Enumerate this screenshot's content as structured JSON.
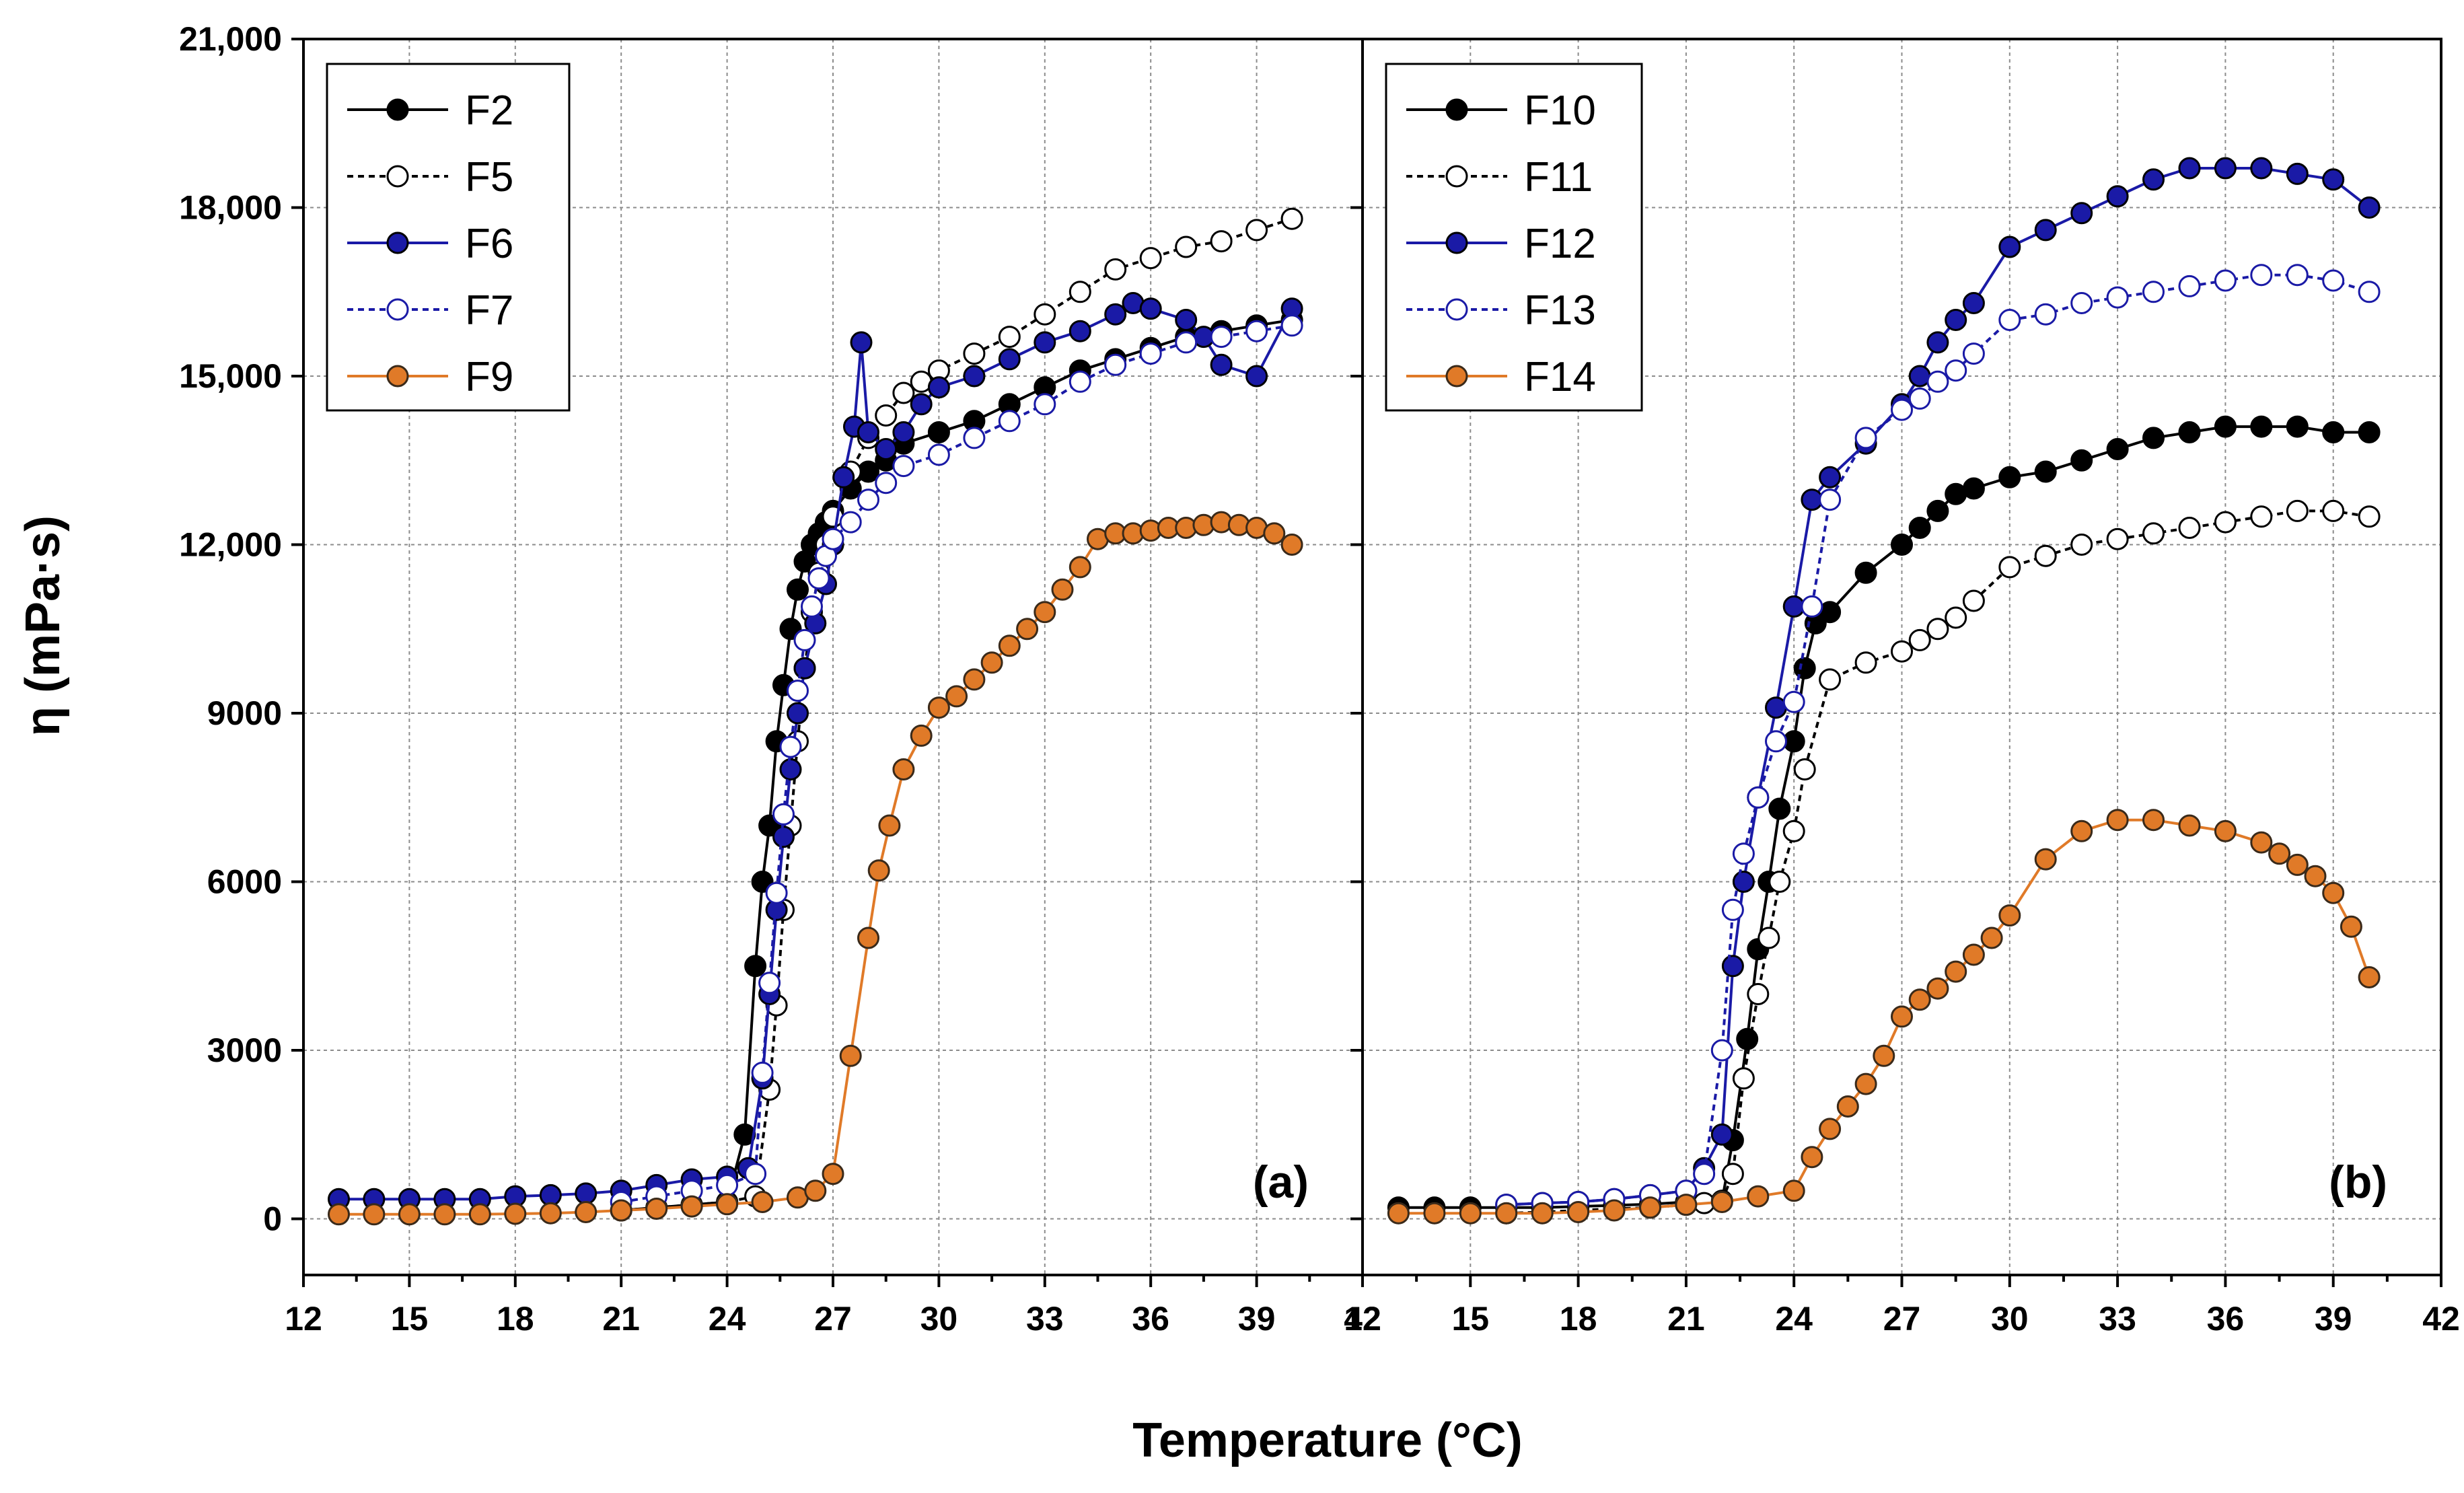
{
  "chart_data": {
    "type": "line",
    "shared": {
      "xlabel": "Temperature (°C)",
      "ylabel": "η (mPa·s)",
      "xlim": [
        12,
        42
      ],
      "ylim": [
        -1000,
        21000
      ],
      "xticks": [
        12,
        15,
        18,
        21,
        24,
        27,
        30,
        33,
        36,
        39,
        42
      ],
      "xtick_labels": [
        "12",
        "15",
        "18",
        "21",
        "24",
        "27",
        "30",
        "33",
        "36",
        "39",
        "42"
      ],
      "yticks": [
        0,
        3000,
        6000,
        9000,
        12000,
        15000,
        18000,
        21000
      ],
      "ytick_labels": [
        "0",
        "3000",
        "6000",
        "9000",
        "12,000",
        "15,000",
        "18,000",
        "21,000"
      ],
      "grid": true
    },
    "panels": [
      {
        "label": "(a)",
        "legend_position": "top-left",
        "series": [
          {
            "name": "F2",
            "color": "#000000",
            "filled": true,
            "dashed": false,
            "x": [
              21,
              22,
              23,
              24,
              24.5,
              24.8,
              25,
              25.2,
              25.4,
              25.6,
              25.8,
              26,
              26.2,
              26.4,
              26.6,
              26.8,
              27,
              27.5,
              28,
              28.5,
              29,
              30,
              31,
              32,
              33,
              34,
              35,
              36,
              37,
              38,
              39,
              40
            ],
            "y": [
              150,
              200,
              250,
              300,
              1500,
              4500,
              6000,
              7000,
              8500,
              9500,
              10500,
              11200,
              11700,
              12000,
              12200,
              12400,
              12600,
              13000,
              13300,
              13500,
              13800,
              14000,
              14200,
              14500,
              14800,
              15100,
              15300,
              15500,
              15700,
              15800,
              15900,
              16000
            ]
          },
          {
            "name": "F5",
            "color": "#000000",
            "filled": false,
            "dashed": true,
            "x": [
              21,
              22,
              23,
              24,
              24.8,
              25.2,
              25.4,
              25.6,
              25.8,
              26,
              26.2,
              26.4,
              26.6,
              26.8,
              27,
              27.5,
              28,
              28.5,
              29,
              29.5,
              30,
              31,
              32,
              33,
              34,
              35,
              36,
              37,
              38,
              39,
              40
            ],
            "y": [
              150,
              200,
              250,
              300,
              400,
              2300,
              3800,
              5500,
              7000,
              8500,
              9800,
              10800,
              11500,
              12000,
              12500,
              13300,
              13900,
              14300,
              14700,
              14900,
              15100,
              15400,
              15700,
              16100,
              16500,
              16900,
              17100,
              17300,
              17400,
              17600,
              17800
            ]
          },
          {
            "name": "F6",
            "color": "#1a1aa6",
            "filled": true,
            "dashed": false,
            "x": [
              13,
              14,
              15,
              16,
              17,
              18,
              19,
              20,
              21,
              22,
              23,
              24,
              24.6,
              25,
              25.2,
              25.4,
              25.6,
              25.8,
              26,
              26.2,
              26.5,
              26.8,
              27,
              27.3,
              27.6,
              27.8,
              28,
              28.5,
              29,
              29.5,
              30,
              31,
              32,
              33,
              34,
              35,
              35.5,
              36,
              37,
              37.5,
              38,
              39,
              40
            ],
            "y": [
              350,
              350,
              350,
              350,
              350,
              400,
              420,
              450,
              500,
              600,
              700,
              750,
              900,
              2500,
              4000,
              5500,
              6800,
              8000,
              9000,
              9800,
              10600,
              11300,
              12000,
              13200,
              14100,
              15600,
              14000,
              13700,
              14000,
              14500,
              14800,
              15000,
              15300,
              15600,
              15800,
              16100,
              16300,
              16200,
              16000,
              15700,
              15200,
              15000,
              16200
            ]
          },
          {
            "name": "F7",
            "color": "#1a1aa6",
            "filled": false,
            "dashed": true,
            "x": [
              21,
              22,
              23,
              24,
              24.8,
              25,
              25.2,
              25.4,
              25.6,
              25.8,
              26,
              26.2,
              26.4,
              26.6,
              26.8,
              27,
              27.5,
              28,
              28.5,
              29,
              30,
              31,
              32,
              33,
              34,
              35,
              36,
              37,
              38,
              39,
              40
            ],
            "y": [
              300,
              400,
              500,
              600,
              800,
              2600,
              4200,
              5800,
              7200,
              8400,
              9400,
              10300,
              10900,
              11400,
              11800,
              12100,
              12400,
              12800,
              13100,
              13400,
              13600,
              13900,
              14200,
              14500,
              14900,
              15200,
              15400,
              15600,
              15700,
              15800,
              15900
            ]
          },
          {
            "name": "F9",
            "color": "#e07a28",
            "filled": true,
            "dashed": false,
            "x": [
              13,
              14,
              15,
              16,
              17,
              18,
              19,
              20,
              21,
              22,
              23,
              24,
              25,
              26,
              26.5,
              27,
              27.5,
              28,
              28.3,
              28.6,
              29,
              29.5,
              30,
              30.5,
              31,
              31.5,
              32,
              32.5,
              33,
              33.5,
              34,
              34.5,
              35,
              35.5,
              36,
              36.5,
              37,
              37.5,
              38,
              38.5,
              39,
              39.5,
              40
            ],
            "y": [
              80,
              80,
              80,
              80,
              80,
              90,
              100,
              120,
              150,
              180,
              220,
              260,
              300,
              380,
              500,
              800,
              2900,
              5000,
              6200,
              7000,
              8000,
              8600,
              9100,
              9300,
              9600,
              9900,
              10200,
              10500,
              10800,
              11200,
              11600,
              12100,
              12200,
              12200,
              12250,
              12300,
              12300,
              12350,
              12400,
              12350,
              12300,
              12200,
              12000
            ]
          }
        ]
      },
      {
        "label": "(b)",
        "legend_position": "top-left",
        "series": [
          {
            "name": "F10",
            "color": "#000000",
            "filled": true,
            "dashed": false,
            "x": [
              13,
              14,
              15,
              16,
              17,
              18,
              19,
              20,
              21,
              22,
              22.3,
              22.7,
              23,
              23.3,
              23.6,
              24,
              24.3,
              24.6,
              25,
              26,
              27,
              27.5,
              28,
              28.5,
              29,
              30,
              31,
              32,
              33,
              34,
              35,
              36,
              37,
              38,
              39,
              40
            ],
            "y": [
              200,
              200,
              200,
              200,
              200,
              220,
              240,
              260,
              300,
              320,
              1400,
              3200,
              4800,
              6000,
              7300,
              8500,
              9800,
              10600,
              10800,
              11500,
              12000,
              12300,
              12600,
              12900,
              13000,
              13200,
              13300,
              13500,
              13700,
              13900,
              14000,
              14100,
              14100,
              14100,
              14000,
              14000
            ]
          },
          {
            "name": "F11",
            "color": "#000000",
            "filled": false,
            "dashed": true,
            "x": [
              16,
              17,
              18,
              19,
              20,
              21,
              21.5,
              22,
              22.3,
              22.6,
              23,
              23.3,
              23.6,
              24,
              24.3,
              25,
              26,
              27,
              27.5,
              28,
              28.5,
              29,
              30,
              31,
              32,
              33,
              34,
              35,
              36,
              37,
              38,
              39,
              40
            ],
            "y": [
              100,
              120,
              150,
              180,
              200,
              250,
              280,
              320,
              800,
              2500,
              4000,
              5000,
              6000,
              6900,
              8000,
              9600,
              9900,
              10100,
              10300,
              10500,
              10700,
              11000,
              11600,
              11800,
              12000,
              12100,
              12200,
              12300,
              12400,
              12500,
              12600,
              12600,
              12500
            ]
          },
          {
            "name": "F12",
            "color": "#1a1aa6",
            "filled": true,
            "dashed": false,
            "x": [
              16,
              17,
              18,
              19,
              20,
              21,
              21.5,
              22,
              22.3,
              22.6,
              23,
              23.5,
              24,
              24.5,
              25,
              26,
              27,
              27.5,
              28,
              28.5,
              29,
              30,
              31,
              32,
              33,
              34,
              35,
              36,
              37,
              38,
              39,
              40
            ],
            "y": [
              250,
              280,
              300,
              350,
              420,
              500,
              900,
              1500,
              4500,
              6000,
              7500,
              9100,
              10900,
              12800,
              13200,
              13800,
              14500,
              15000,
              15600,
              16000,
              16300,
              17300,
              17600,
              17900,
              18200,
              18500,
              18700,
              18700,
              18700,
              18600,
              18500,
              18000
            ]
          },
          {
            "name": "F13",
            "color": "#1a1aa6",
            "filled": false,
            "dashed": true,
            "x": [
              16,
              17,
              18,
              19,
              20,
              21,
              21.5,
              22,
              22.3,
              22.6,
              23,
              23.5,
              24,
              24.5,
              25,
              26,
              27,
              27.5,
              28,
              28.5,
              29,
              30,
              31,
              32,
              33,
              34,
              35,
              36,
              37,
              38,
              39,
              40
            ],
            "y": [
              250,
              280,
              300,
              350,
              420,
              500,
              800,
              3000,
              5500,
              6500,
              7500,
              8500,
              9200,
              10900,
              12800,
              13900,
              14400,
              14600,
              14900,
              15100,
              15400,
              16000,
              16100,
              16300,
              16400,
              16500,
              16600,
              16700,
              16800,
              16800,
              16700,
              16500
            ]
          },
          {
            "name": "F14",
            "color": "#e07a28",
            "filled": true,
            "dashed": false,
            "x": [
              13,
              14,
              15,
              16,
              17,
              18,
              19,
              20,
              21,
              22,
              23,
              24,
              24.5,
              25,
              25.5,
              26,
              26.5,
              27,
              27.5,
              28,
              28.5,
              29,
              29.5,
              30,
              31,
              32,
              33,
              34,
              35,
              36,
              37,
              37.5,
              38,
              38.5,
              39,
              39.5,
              40
            ],
            "y": [
              100,
              100,
              100,
              100,
              100,
              120,
              150,
              200,
              250,
              300,
              400,
              500,
              1100,
              1600,
              2000,
              2400,
              2900,
              3600,
              3900,
              4100,
              4400,
              4700,
              5000,
              5400,
              6400,
              6900,
              7100,
              7100,
              7000,
              6900,
              6700,
              6500,
              6300,
              6100,
              5800,
              5200,
              4300
            ]
          }
        ]
      }
    ]
  }
}
